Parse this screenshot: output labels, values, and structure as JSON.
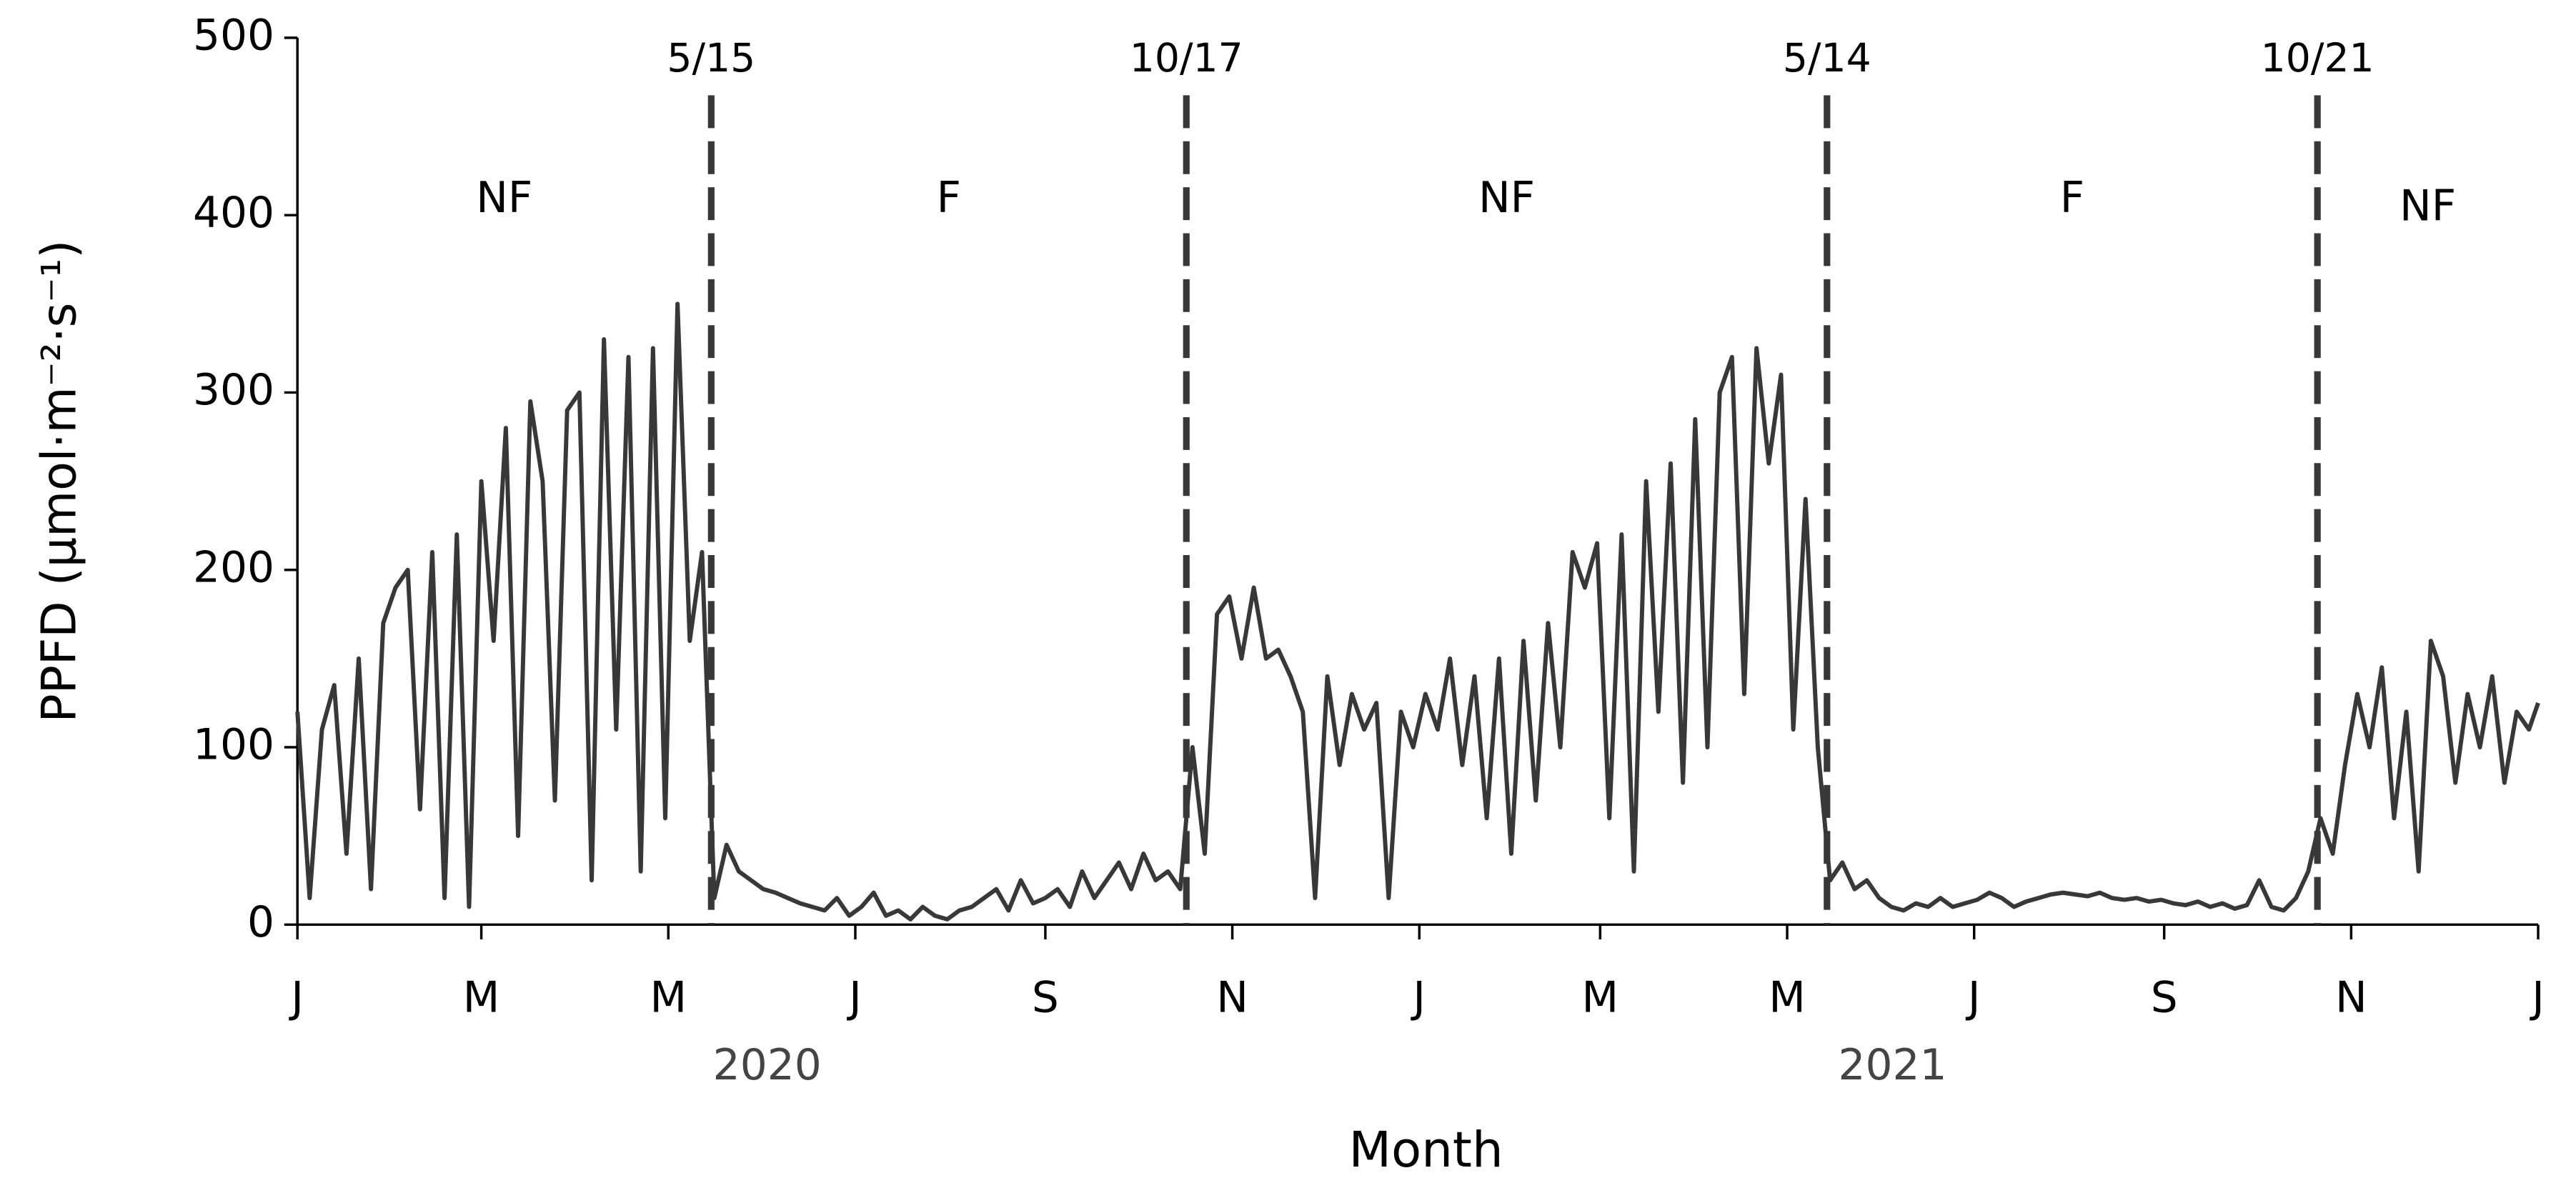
{
  "chart_data": {
    "type": "line",
    "y_label": "PPFD (μmol·m⁻²·s⁻¹)",
    "x_label": "Month",
    "color": "#383838",
    "xlim": [
      0,
      731
    ],
    "xticks": [
      {
        "value": 0,
        "label": "J"
      },
      {
        "value": 60,
        "label": "M"
      },
      {
        "value": 121,
        "label": "M"
      },
      {
        "value": 182,
        "label": "J"
      },
      {
        "value": 244,
        "label": "S"
      },
      {
        "value": 305,
        "label": "N"
      },
      {
        "value": 366,
        "label": "J"
      },
      {
        "value": 425,
        "label": "M"
      },
      {
        "value": 486,
        "label": "M"
      },
      {
        "value": 547,
        "label": "J"
      },
      {
        "value": 609,
        "label": "S"
      },
      {
        "value": 670,
        "label": "N"
      },
      {
        "value": 731,
        "label": "J"
      }
    ],
    "years": [
      "2020",
      "2021"
    ],
    "ylim": [
      0,
      500
    ],
    "yticks": [
      0,
      100,
      200,
      300,
      400,
      500
    ],
    "vlines": [
      {
        "value": 135,
        "label": "5/15"
      },
      {
        "value": 290,
        "label": "10/17"
      },
      {
        "value": 499,
        "label": "5/14"
      },
      {
        "value": 659,
        "label": "10/21"
      }
    ],
    "phases": [
      "NF",
      "F",
      "NF",
      "F",
      "NF"
    ],
    "x": [
      0,
      4,
      8,
      12,
      16,
      20,
      24,
      28,
      32,
      36,
      40,
      44,
      48,
      52,
      56,
      60,
      64,
      68,
      72,
      76,
      80,
      84,
      88,
      92,
      96,
      100,
      104,
      108,
      112,
      116,
      120,
      124,
      128,
      132,
      136,
      140,
      144,
      148,
      152,
      156,
      160,
      164,
      168,
      172,
      176,
      180,
      184,
      188,
      192,
      196,
      200,
      204,
      208,
      212,
      216,
      220,
      224,
      228,
      232,
      236,
      240,
      244,
      248,
      252,
      256,
      260,
      264,
      268,
      272,
      276,
      280,
      284,
      288,
      292,
      296,
      300,
      304,
      308,
      312,
      316,
      320,
      324,
      328,
      332,
      336,
      340,
      344,
      348,
      352,
      356,
      360,
      364,
      368,
      372,
      376,
      380,
      384,
      388,
      392,
      396,
      400,
      404,
      408,
      412,
      416,
      420,
      424,
      428,
      432,
      436,
      440,
      444,
      448,
      452,
      456,
      460,
      464,
      468,
      472,
      476,
      480,
      484,
      488,
      492,
      496,
      500,
      504,
      508,
      512,
      516,
      520,
      524,
      528,
      532,
      536,
      540,
      544,
      548,
      552,
      556,
      560,
      564,
      568,
      572,
      576,
      580,
      584,
      588,
      592,
      596,
      600,
      604,
      608,
      612,
      616,
      620,
      624,
      628,
      632,
      636,
      640,
      644,
      648,
      652,
      656,
      660,
      664,
      668,
      672,
      676,
      680,
      684,
      688,
      692,
      696,
      700,
      704,
      708,
      712,
      716,
      720,
      724,
      728,
      731
    ],
    "values": [
      120,
      15,
      110,
      135,
      40,
      150,
      20,
      170,
      190,
      200,
      65,
      210,
      15,
      220,
      10,
      250,
      160,
      280,
      50,
      295,
      250,
      70,
      290,
      300,
      25,
      330,
      110,
      320,
      30,
      325,
      60,
      350,
      160,
      210,
      15,
      45,
      30,
      25,
      20,
      18,
      15,
      12,
      10,
      8,
      15,
      5,
      10,
      18,
      5,
      8,
      3,
      10,
      5,
      3,
      8,
      10,
      15,
      20,
      8,
      25,
      12,
      15,
      20,
      10,
      30,
      15,
      25,
      35,
      20,
      40,
      25,
      30,
      20,
      100,
      40,
      175,
      185,
      150,
      190,
      150,
      155,
      140,
      120,
      15,
      140,
      90,
      130,
      110,
      125,
      15,
      120,
      100,
      130,
      110,
      150,
      90,
      140,
      60,
      150,
      40,
      160,
      70,
      170,
      100,
      210,
      190,
      215,
      60,
      220,
      30,
      250,
      120,
      260,
      80,
      285,
      100,
      300,
      320,
      130,
      325,
      260,
      310,
      110,
      240,
      100,
      25,
      35,
      20,
      25,
      15,
      10,
      8,
      12,
      10,
      15,
      10,
      12,
      14,
      18,
      15,
      10,
      13,
      15,
      17,
      18,
      17,
      16,
      18,
      15,
      14,
      15,
      13,
      14,
      12,
      11,
      13,
      10,
      12,
      9,
      11,
      25,
      10,
      8,
      15,
      30,
      60,
      40,
      90,
      130,
      100,
      145,
      60,
      120,
      30,
      160,
      140,
      80,
      130,
      100,
      140,
      80,
      120,
      110,
      125
    ]
  }
}
